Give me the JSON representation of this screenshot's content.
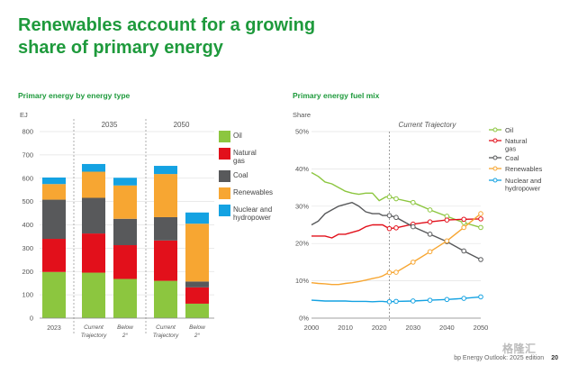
{
  "page": {
    "title_line1": "Renewables account for a growing",
    "title_line2": "share of primary energy",
    "footer": "bp Energy Outlook: 2025 edition",
    "page_number": "20",
    "watermark": "格隆汇"
  },
  "colors": {
    "title_green": "#1e9a3c",
    "oil": "#8cc63f",
    "natural_gas": "#e2101b",
    "coal": "#58595b",
    "renewables": "#f7a632",
    "nuclear_hydro": "#14a2e2"
  },
  "chart_data": [
    {
      "type": "bar",
      "stacked": true,
      "title": "Primary energy by energy type",
      "ylabel": "EJ",
      "ylim": [
        0,
        800
      ],
      "yticks": [
        0,
        100,
        200,
        300,
        400,
        500,
        600,
        700,
        800
      ],
      "groups": [
        {
          "label": "",
          "categories": [
            "2023"
          ]
        },
        {
          "label": "2035",
          "categories": [
            "Current Trajectory",
            "Below 2°"
          ]
        },
        {
          "label": "2050",
          "categories": [
            "Current Trajectory",
            "Below 2°"
          ]
        }
      ],
      "categories": [
        "2023",
        "Current Trajectory",
        "Below 2°",
        "Current Trajectory",
        "Below 2°"
      ],
      "series": [
        {
          "name": "Oil",
          "color": "#8cc63f",
          "values": [
            198,
            195,
            168,
            160,
            62
          ]
        },
        {
          "name": "Natural gas",
          "color": "#e2101b",
          "values": [
            142,
            168,
            145,
            173,
            70
          ]
        },
        {
          "name": "Coal",
          "color": "#58595b",
          "values": [
            168,
            153,
            113,
            100,
            25
          ]
        },
        {
          "name": "Renewables",
          "color": "#f7a632",
          "values": [
            67,
            112,
            143,
            185,
            248
          ]
        },
        {
          "name": "Nuclear and hydropower",
          "color": "#14a2e2",
          "values": [
            28,
            33,
            33,
            35,
            48
          ]
        }
      ],
      "legend_position": "right"
    },
    {
      "type": "line",
      "title": "Primary energy fuel mix",
      "ylabel": "Share",
      "xlim": [
        2000,
        2050
      ],
      "ylim": [
        0,
        50
      ],
      "xticks": [
        2000,
        2010,
        2020,
        2030,
        2040,
        2050
      ],
      "yticks": [
        0,
        10,
        20,
        30,
        40,
        50
      ],
      "ytick_suffix": "%",
      "annotation": "Current Trajectory",
      "divider_x": 2023,
      "series": [
        {
          "name": "Oil",
          "color": "#8cc63f",
          "hist_x": [
            2000,
            2002,
            2004,
            2006,
            2008,
            2010,
            2012,
            2014,
            2016,
            2018,
            2020,
            2021,
            2022,
            2023
          ],
          "hist_y": [
            39,
            38,
            36.5,
            36,
            35,
            34,
            33.5,
            33.2,
            33.5,
            33.5,
            31.5,
            32,
            32.5,
            32.5
          ],
          "proj_x": [
            2023,
            2025,
            2030,
            2035,
            2040,
            2045,
            2050
          ],
          "proj_y": [
            32.5,
            32,
            31,
            29,
            27.3,
            25.6,
            24.3
          ]
        },
        {
          "name": "Natural gas",
          "color": "#e2101b",
          "hist_x": [
            2000,
            2002,
            2004,
            2006,
            2008,
            2010,
            2012,
            2014,
            2016,
            2018,
            2020,
            2021,
            2022,
            2023
          ],
          "hist_y": [
            22,
            22,
            22,
            21.5,
            22.5,
            22.5,
            23,
            23.5,
            24.5,
            25,
            25,
            25,
            24.5,
            24
          ],
          "proj_x": [
            2023,
            2025,
            2030,
            2035,
            2040,
            2045,
            2050
          ],
          "proj_y": [
            24,
            24.2,
            25.2,
            25.8,
            26.3,
            26.5,
            26.6
          ]
        },
        {
          "name": "Coal",
          "color": "#58595b",
          "hist_x": [
            2000,
            2002,
            2004,
            2006,
            2008,
            2010,
            2012,
            2014,
            2016,
            2018,
            2020,
            2021,
            2022,
            2023
          ],
          "hist_y": [
            25,
            26,
            28,
            29,
            30,
            30.5,
            31,
            30,
            28.5,
            28,
            28,
            27.5,
            27.5,
            27.5
          ],
          "proj_x": [
            2023,
            2025,
            2030,
            2035,
            2040,
            2045,
            2050
          ],
          "proj_y": [
            27.5,
            27,
            24.5,
            22.5,
            20.5,
            18,
            15.7
          ]
        },
        {
          "name": "Renewables",
          "color": "#f7a632",
          "hist_x": [
            2000,
            2002,
            2004,
            2006,
            2008,
            2010,
            2012,
            2014,
            2016,
            2018,
            2020,
            2021,
            2022,
            2023
          ],
          "hist_y": [
            9.5,
            9.3,
            9.2,
            9,
            9,
            9.3,
            9.5,
            9.8,
            10.2,
            10.6,
            11,
            11.3,
            11.8,
            12.2
          ],
          "proj_x": [
            2023,
            2025,
            2030,
            2035,
            2040,
            2045,
            2050
          ],
          "proj_y": [
            12.2,
            12.3,
            15,
            17.8,
            20.7,
            24.3,
            28
          ]
        },
        {
          "name": "Nuclear and hydropower",
          "color": "#14a2e2",
          "hist_x": [
            2000,
            2002,
            2004,
            2006,
            2008,
            2010,
            2012,
            2014,
            2016,
            2018,
            2020,
            2021,
            2022,
            2023
          ],
          "hist_y": [
            4.8,
            4.7,
            4.6,
            4.6,
            4.6,
            4.6,
            4.5,
            4.5,
            4.5,
            4.4,
            4.5,
            4.5,
            4.4,
            4.4
          ],
          "proj_x": [
            2023,
            2025,
            2030,
            2035,
            2040,
            2045,
            2050
          ],
          "proj_y": [
            4.4,
            4.5,
            4.6,
            4.8,
            5,
            5.3,
            5.7
          ]
        }
      ],
      "legend_position": "right"
    }
  ]
}
